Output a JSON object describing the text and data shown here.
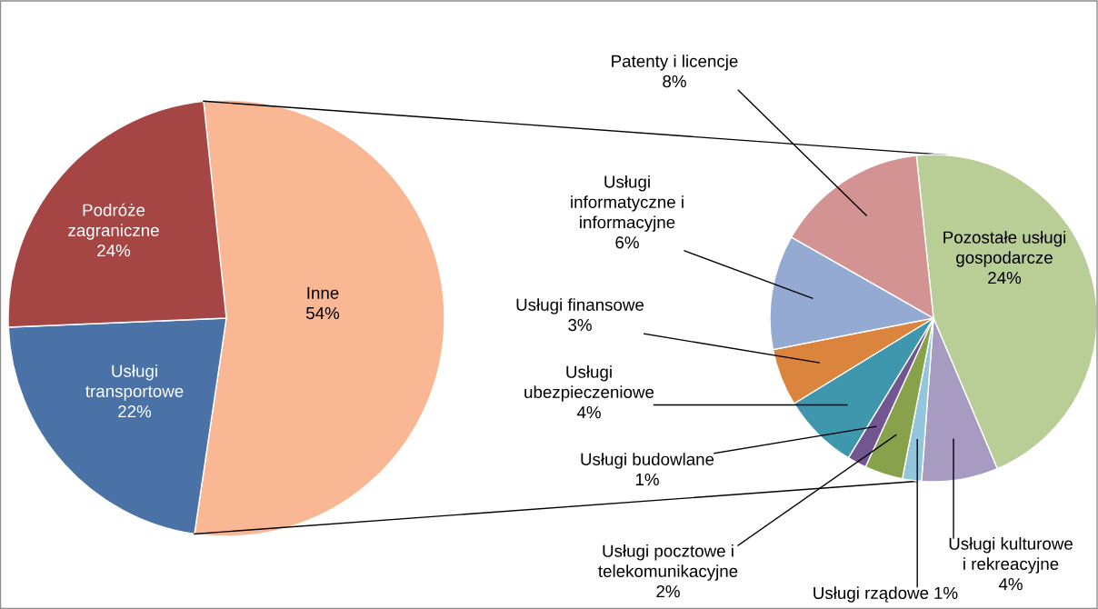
{
  "chart_data": [
    {
      "type": "pie",
      "categories": [
        "Inne",
        "Usługi transportowe",
        "Podróże zagraniczne"
      ],
      "values": [
        54,
        22,
        24
      ],
      "value_labels": [
        "54%",
        "22%",
        "24%"
      ],
      "colors": [
        "#f9b793",
        "#4a72a6",
        "#a64644"
      ]
    },
    {
      "type": "pie",
      "categories": [
        "Pozostałe usługi gospodarcze",
        "Usługi kulturowe i rekreacyjne",
        "Usługi rządowe",
        "Usługi pocztowe i telekomunikacyjne",
        "Usługi budowlane",
        "Usługi ubezpieczeniowe",
        "Usługi finansowe",
        "Usługi informatyczne i informacyjne",
        "Patenty i licencje"
      ],
      "values": [
        24,
        4,
        1,
        2,
        1,
        4,
        3,
        6,
        8
      ],
      "value_labels": [
        "24%",
        "4%",
        "1%",
        "2%",
        "1%",
        "4%",
        "3%",
        "6%",
        "8%"
      ],
      "colors": [
        "#b9cd96",
        "#a89bc2",
        "#93c5dc",
        "#87a24a",
        "#715690",
        "#3f97ae",
        "#db843d",
        "#94aad3",
        "#d29392"
      ]
    }
  ]
}
